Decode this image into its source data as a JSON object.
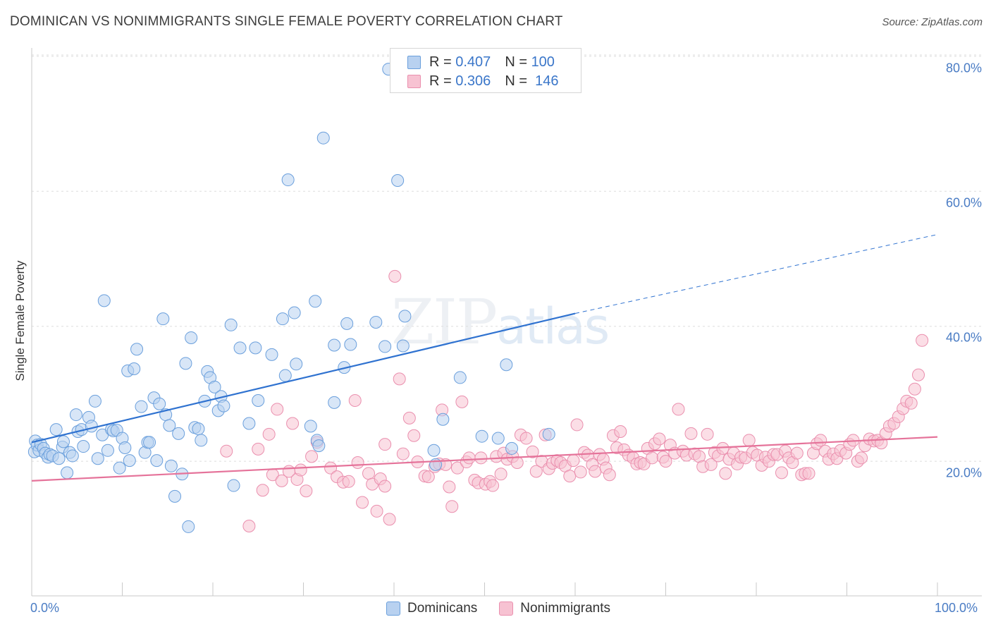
{
  "header": {
    "title": "DOMINICAN VS NONIMMIGRANTS SINGLE FEMALE POVERTY CORRELATION CHART",
    "source": "Source: ZipAtlas.com"
  },
  "watermark": {
    "part1": "ZIP",
    "part2": "atlas"
  },
  "legend_top": {
    "rows": [
      {
        "r_label": "R =",
        "r_value": "0.407",
        "n_label": "N =",
        "n_value": "100"
      },
      {
        "r_label": "R =",
        "r_value": "0.306",
        "n_label": "N =",
        "n_value": "146"
      }
    ]
  },
  "legend_bottom": {
    "items": [
      "Dominicans",
      "Nonimmigrants"
    ]
  },
  "chart_data": {
    "type": "scatter",
    "title": "DOMINICAN VS NONIMMIGRANTS SINGLE FEMALE POVERTY CORRELATION CHART",
    "xlabel": "",
    "ylabel": "Single Female Poverty",
    "xlim": [
      0,
      100
    ],
    "ylim": [
      0,
      82
    ],
    "x_tick_labels": [
      "0.0%",
      "100.0%"
    ],
    "y_tick_labels": [
      "20.0%",
      "40.0%",
      "60.0%",
      "80.0%"
    ],
    "y_ticks": [
      20,
      40,
      60,
      80
    ],
    "grid": true,
    "legend": "top-center",
    "colors": {
      "dominicans_fill": "#b8d1f0",
      "dominicans_stroke": "#6a9fdc",
      "dominicans_line": "#2f72d0",
      "nonimmigrants_fill": "#f7c2d2",
      "nonimmigrants_stroke": "#ea8fae",
      "nonimmigrants_line": "#e5739a",
      "tick_text": "#4a7cc4"
    },
    "series": [
      {
        "name": "Dominicans",
        "R": 0.407,
        "N": 100,
        "trend": {
          "x": [
            0,
            60
          ],
          "y": [
            22.8,
            41.9
          ],
          "dashed_to": [
            100,
            53.6
          ]
        },
        "points": [
          [
            0.3,
            21.4
          ],
          [
            0.4,
            23.0
          ],
          [
            0.6,
            22.4
          ],
          [
            0.8,
            21.6
          ],
          [
            1.0,
            22.5
          ],
          [
            1.3,
            21.9
          ],
          [
            1.5,
            21.2
          ],
          [
            1.8,
            20.6
          ],
          [
            2.0,
            21.0
          ],
          [
            2.3,
            20.8
          ],
          [
            2.7,
            24.7
          ],
          [
            3.0,
            20.4
          ],
          [
            3.4,
            22.1
          ],
          [
            3.5,
            22.9
          ],
          [
            3.9,
            18.3
          ],
          [
            4.2,
            21.3
          ],
          [
            4.5,
            20.8
          ],
          [
            4.9,
            26.9
          ],
          [
            5.1,
            24.4
          ],
          [
            5.5,
            24.7
          ],
          [
            5.7,
            22.2
          ],
          [
            6.3,
            26.5
          ],
          [
            6.6,
            25.2
          ],
          [
            7.0,
            28.9
          ],
          [
            7.3,
            20.4
          ],
          [
            7.8,
            23.9
          ],
          [
            8.0,
            43.8
          ],
          [
            8.4,
            21.6
          ],
          [
            8.8,
            24.7
          ],
          [
            9.0,
            24.5
          ],
          [
            9.4,
            24.6
          ],
          [
            9.7,
            19.0
          ],
          [
            10.0,
            23.4
          ],
          [
            10.3,
            22.0
          ],
          [
            10.6,
            33.4
          ],
          [
            10.8,
            20.1
          ],
          [
            11.3,
            33.7
          ],
          [
            11.6,
            36.6
          ],
          [
            12.1,
            28.1
          ],
          [
            12.5,
            21.3
          ],
          [
            12.8,
            22.8
          ],
          [
            13.0,
            22.8
          ],
          [
            13.5,
            29.4
          ],
          [
            13.8,
            20.1
          ],
          [
            14.1,
            28.5
          ],
          [
            14.5,
            41.1
          ],
          [
            14.8,
            26.9
          ],
          [
            15.2,
            25.3
          ],
          [
            15.4,
            19.3
          ],
          [
            15.8,
            14.8
          ],
          [
            16.2,
            24.1
          ],
          [
            16.6,
            18.1
          ],
          [
            17.0,
            34.5
          ],
          [
            17.3,
            10.3
          ],
          [
            17.6,
            38.3
          ],
          [
            18.0,
            25.0
          ],
          [
            18.4,
            24.8
          ],
          [
            18.7,
            23.1
          ],
          [
            19.1,
            28.9
          ],
          [
            19.4,
            33.3
          ],
          [
            19.7,
            32.4
          ],
          [
            20.2,
            31.0
          ],
          [
            20.6,
            27.5
          ],
          [
            20.9,
            29.6
          ],
          [
            21.2,
            28.2
          ],
          [
            22.0,
            40.2
          ],
          [
            22.3,
            16.4
          ],
          [
            23.0,
            36.8
          ],
          [
            24.0,
            25.6
          ],
          [
            24.7,
            36.8
          ],
          [
            25.0,
            29.0
          ],
          [
            26.5,
            35.8
          ],
          [
            27.7,
            41.1
          ],
          [
            28.0,
            32.7
          ],
          [
            28.3,
            61.7
          ],
          [
            29.0,
            42.0
          ],
          [
            29.2,
            34.4
          ],
          [
            30.8,
            25.2
          ],
          [
            31.5,
            23.1
          ],
          [
            31.7,
            22.3
          ],
          [
            31.3,
            43.7
          ],
          [
            32.2,
            67.9
          ],
          [
            33.4,
            37.2
          ],
          [
            33.4,
            28.7
          ],
          [
            34.5,
            33.9
          ],
          [
            34.8,
            40.4
          ],
          [
            35.2,
            37.3
          ],
          [
            38.0,
            40.6
          ],
          [
            39.0,
            37.0
          ],
          [
            39.4,
            78.1
          ],
          [
            40.4,
            61.6
          ],
          [
            41.0,
            37.1
          ],
          [
            41.2,
            41.5
          ],
          [
            44.4,
            21.6
          ],
          [
            44.6,
            19.5
          ],
          [
            45.4,
            26.2
          ],
          [
            47.3,
            32.4
          ],
          [
            49.7,
            23.7
          ],
          [
            51.5,
            23.4
          ],
          [
            52.4,
            34.3
          ],
          [
            53.0,
            21.9
          ],
          [
            57.1,
            24.0
          ]
        ]
      },
      {
        "name": "Nonimmigrants",
        "R": 0.306,
        "N": 146,
        "trend": {
          "x": [
            0,
            100
          ],
          "y": [
            17.1,
            23.6
          ]
        },
        "points": [
          [
            21.5,
            21.5
          ],
          [
            24.0,
            10.4
          ],
          [
            25.0,
            21.8
          ],
          [
            25.5,
            15.7
          ],
          [
            26.2,
            24.0
          ],
          [
            26.6,
            18.0
          ],
          [
            27.1,
            27.7
          ],
          [
            27.6,
            17.1
          ],
          [
            28.4,
            18.5
          ],
          [
            28.8,
            25.6
          ],
          [
            29.3,
            17.3
          ],
          [
            29.7,
            18.7
          ],
          [
            30.9,
            20.7
          ],
          [
            30.3,
            15.6
          ],
          [
            31.5,
            22.8
          ],
          [
            33.0,
            19.0
          ],
          [
            33.7,
            17.7
          ],
          [
            34.4,
            16.9
          ],
          [
            35.0,
            17.0
          ],
          [
            35.7,
            29.0
          ],
          [
            36.0,
            19.8
          ],
          [
            36.5,
            13.9
          ],
          [
            37.2,
            18.2
          ],
          [
            37.6,
            16.6
          ],
          [
            38.1,
            12.6
          ],
          [
            38.5,
            17.4
          ],
          [
            39.0,
            16.3
          ],
          [
            39.5,
            11.4
          ],
          [
            39.0,
            22.5
          ],
          [
            40.1,
            47.4
          ],
          [
            40.6,
            32.2
          ],
          [
            41.0,
            21.1
          ],
          [
            41.7,
            26.4
          ],
          [
            42.2,
            23.8
          ],
          [
            42.6,
            19.9
          ],
          [
            43.4,
            17.8
          ],
          [
            43.8,
            17.7
          ],
          [
            44.5,
            19.2
          ],
          [
            45.0,
            19.6
          ],
          [
            45.3,
            27.6
          ],
          [
            45.7,
            19.5
          ],
          [
            46.1,
            16.2
          ],
          [
            46.4,
            13.3
          ],
          [
            47.0,
            19.0
          ],
          [
            47.5,
            28.8
          ],
          [
            48.0,
            19.9
          ],
          [
            48.3,
            20.5
          ],
          [
            48.9,
            17.2
          ],
          [
            49.3,
            16.8
          ],
          [
            49.6,
            20.5
          ],
          [
            50.1,
            16.6
          ],
          [
            50.6,
            17.0
          ],
          [
            50.9,
            16.4
          ],
          [
            51.3,
            20.7
          ],
          [
            51.8,
            18.1
          ],
          [
            52.1,
            21.2
          ],
          [
            52.5,
            20.3
          ],
          [
            53.1,
            20.7
          ],
          [
            53.6,
            19.8
          ],
          [
            54.0,
            23.9
          ],
          [
            54.6,
            23.4
          ],
          [
            55.3,
            21.4
          ],
          [
            55.7,
            18.5
          ],
          [
            56.3,
            20.0
          ],
          [
            56.7,
            23.9
          ],
          [
            57.1,
            18.9
          ],
          [
            57.5,
            19.7
          ],
          [
            58.0,
            20.1
          ],
          [
            58.4,
            19.8
          ],
          [
            58.9,
            19.3
          ],
          [
            59.4,
            17.8
          ],
          [
            59.8,
            20.1
          ],
          [
            60.2,
            25.4
          ],
          [
            60.6,
            18.4
          ],
          [
            61.0,
            21.3
          ],
          [
            61.4,
            20.9
          ],
          [
            61.9,
            19.5
          ],
          [
            62.2,
            18.5
          ],
          [
            62.7,
            21.0
          ],
          [
            63.1,
            20.3
          ],
          [
            63.4,
            19.0
          ],
          [
            63.8,
            18.0
          ],
          [
            64.2,
            23.8
          ],
          [
            64.6,
            22.0
          ],
          [
            65.0,
            24.4
          ],
          [
            65.4,
            21.7
          ],
          [
            65.9,
            20.9
          ],
          [
            66.4,
            20.5
          ],
          [
            66.8,
            19.6
          ],
          [
            67.2,
            19.8
          ],
          [
            67.6,
            19.6
          ],
          [
            68.0,
            21.9
          ],
          [
            68.5,
            20.5
          ],
          [
            68.8,
            22.6
          ],
          [
            69.3,
            23.3
          ],
          [
            69.7,
            20.6
          ],
          [
            70.0,
            20.0
          ],
          [
            70.5,
            22.4
          ],
          [
            71.0,
            21.2
          ],
          [
            71.4,
            27.7
          ],
          [
            71.9,
            21.5
          ],
          [
            72.3,
            20.9
          ],
          [
            72.8,
            24.1
          ],
          [
            73.2,
            21.1
          ],
          [
            73.7,
            20.7
          ],
          [
            74.1,
            19.2
          ],
          [
            74.6,
            24.0
          ],
          [
            75.0,
            19.5
          ],
          [
            75.4,
            21.3
          ],
          [
            75.8,
            20.8
          ],
          [
            76.3,
            21.9
          ],
          [
            76.6,
            18.2
          ],
          [
            77.0,
            20.3
          ],
          [
            77.5,
            21.2
          ],
          [
            77.9,
            19.6
          ],
          [
            78.3,
            20.6
          ],
          [
            78.8,
            20.5
          ],
          [
            79.2,
            23.1
          ],
          [
            79.6,
            21.3
          ],
          [
            80.1,
            20.9
          ],
          [
            80.6,
            19.4
          ],
          [
            81.0,
            20.6
          ],
          [
            81.4,
            20.0
          ],
          [
            81.9,
            21.0
          ],
          [
            82.3,
            21.0
          ],
          [
            82.8,
            18.3
          ],
          [
            83.2,
            21.5
          ],
          [
            83.6,
            20.5
          ],
          [
            84.0,
            19.8
          ],
          [
            84.5,
            21.2
          ],
          [
            85.0,
            18.0
          ],
          [
            85.4,
            18.2
          ],
          [
            85.8,
            18.2
          ],
          [
            86.3,
            21.2
          ],
          [
            86.7,
            22.6
          ],
          [
            87.1,
            23.1
          ],
          [
            87.6,
            21.5
          ],
          [
            88.0,
            20.3
          ],
          [
            88.5,
            21.1
          ],
          [
            88.9,
            20.4
          ],
          [
            89.3,
            21.6
          ],
          [
            89.9,
            21.2
          ],
          [
            90.3,
            22.5
          ],
          [
            90.7,
            23.1
          ],
          [
            91.2,
            20.0
          ],
          [
            91.6,
            20.5
          ],
          [
            92.0,
            22.3
          ],
          [
            92.5,
            23.3
          ],
          [
            93.0,
            23.0
          ],
          [
            93.4,
            23.1
          ],
          [
            93.8,
            22.7
          ],
          [
            94.3,
            24.1
          ],
          [
            94.7,
            25.2
          ],
          [
            95.2,
            25.6
          ],
          [
            95.7,
            26.6
          ],
          [
            96.2,
            27.8
          ],
          [
            96.6,
            28.9
          ],
          [
            97.1,
            28.6
          ],
          [
            97.5,
            30.7
          ],
          [
            97.9,
            32.8
          ],
          [
            98.3,
            37.9
          ]
        ]
      }
    ]
  }
}
